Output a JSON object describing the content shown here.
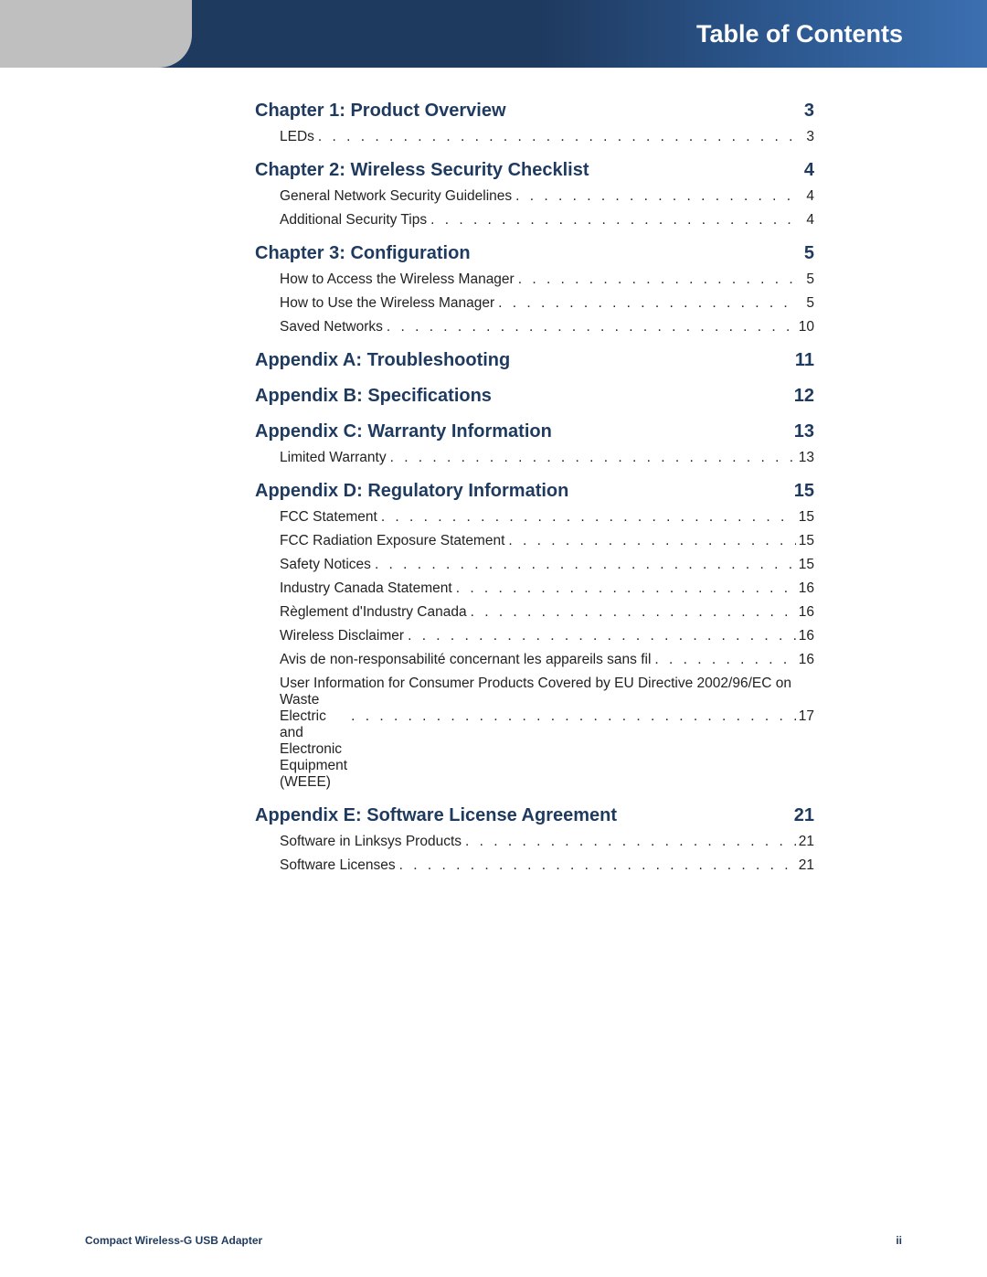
{
  "colors": {
    "header_gradient_start": "#1f3a5f",
    "header_gradient_end": "#3b6fb0",
    "gutter": "#bfbfbf",
    "section_text": "#1f3a5f",
    "body_text": "#222222",
    "background": "#ffffff"
  },
  "typography": {
    "header_title_size": 27,
    "section_title_size": 20,
    "entry_size": 15.5,
    "footer_size": 12,
    "family": "Myriad Pro / sans-serif",
    "header_weight": 700,
    "section_weight": 700
  },
  "header": {
    "title": "Table of Contents"
  },
  "footer": {
    "product": "Compact Wireless-G USB Adapter",
    "page_roman": "ii"
  },
  "toc": [
    {
      "title": "Chapter 1: Product Overview",
      "page": "3",
      "entries": [
        {
          "label": "LEDs",
          "page": "3"
        }
      ]
    },
    {
      "title": "Chapter 2: Wireless Security Checklist",
      "page": "4",
      "entries": [
        {
          "label": "General Network Security Guidelines",
          "page": "4"
        },
        {
          "label": "Additional Security Tips",
          "page": "4"
        }
      ]
    },
    {
      "title": "Chapter 3: Configuration",
      "page": "5",
      "entries": [
        {
          "label": "How to Access the Wireless Manager",
          "page": "5"
        },
        {
          "label": "How to Use the Wireless Manager",
          "page": "5"
        },
        {
          "label": "Saved Networks",
          "page": "10"
        }
      ]
    },
    {
      "title": "Appendix A: Troubleshooting",
      "page": "11",
      "entries": []
    },
    {
      "title": "Appendix B: Specifications",
      "page": "12",
      "entries": []
    },
    {
      "title": "Appendix C: Warranty Information",
      "page": "13",
      "entries": [
        {
          "label": "Limited Warranty",
          "page": "13"
        }
      ]
    },
    {
      "title": "Appendix D: Regulatory Information",
      "page": "15",
      "entries": [
        {
          "label": "FCC Statement",
          "page": "15"
        },
        {
          "label": "FCC Radiation Exposure Statement",
          "page": "15"
        },
        {
          "label": "Safety Notices",
          "page": "15"
        },
        {
          "label": "Industry Canada Statement",
          "page": "16"
        },
        {
          "label": "Règlement d'Industry Canada",
          "page": "16"
        },
        {
          "label": "Wireless Disclaimer",
          "page": "16"
        },
        {
          "label": "Avis de non-responsabilité concernant les appareils sans fil",
          "page": "16"
        },
        {
          "label_line1": "User Information for Consumer Products Covered by EU Directive 2002/96/EC on Waste",
          "label_line2": "Electric and Electronic Equipment (WEEE)",
          "page": "17",
          "multiline": true
        }
      ]
    },
    {
      "title": "Appendix E: Software License Agreement",
      "page": "21",
      "entries": [
        {
          "label": "Software in Linksys Products",
          "page": "21"
        },
        {
          "label": "Software Licenses",
          "page": "21"
        }
      ]
    }
  ]
}
